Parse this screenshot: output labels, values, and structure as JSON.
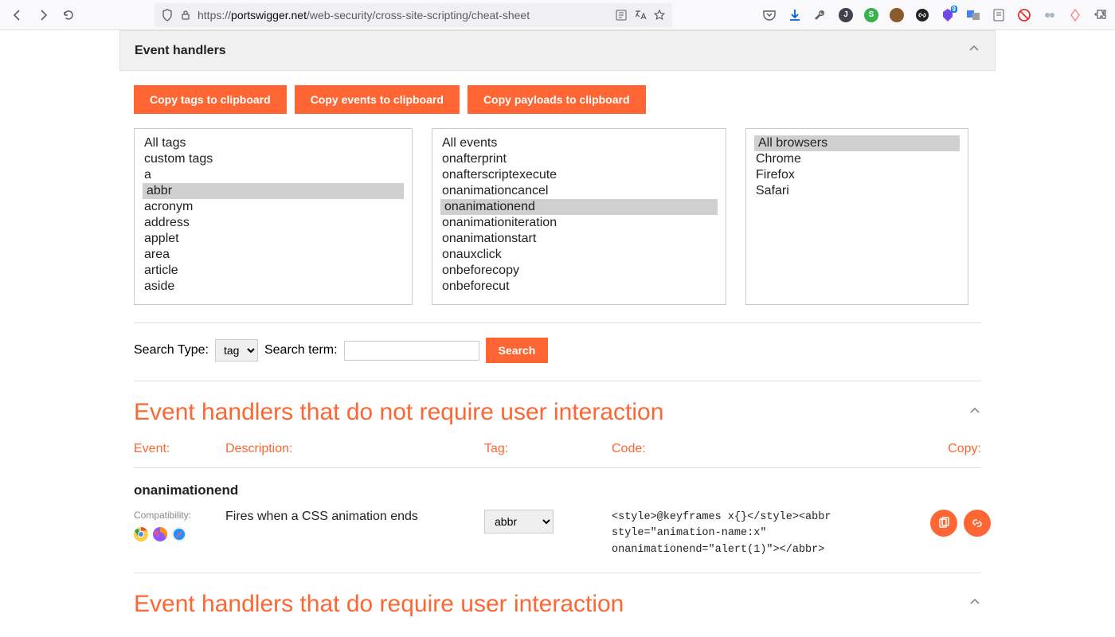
{
  "browser": {
    "url_prefix": "https://",
    "url_domain": "portswigger.net",
    "url_path": "/web-security/cross-site-scripting/cheat-sheet"
  },
  "header": {
    "title": "Event handlers"
  },
  "copy_buttons": {
    "tags": "Copy tags to clipboard",
    "events": "Copy events to clipboard",
    "payloads": "Copy payloads to clipboard"
  },
  "tags_list": {
    "items": [
      "All tags",
      "custom tags",
      "a",
      "abbr",
      "acronym",
      "address",
      "applet",
      "area",
      "article",
      "aside"
    ],
    "selected_index": 3
  },
  "events_list": {
    "items": [
      "All events",
      "onafterprint",
      "onafterscriptexecute",
      "onanimationcancel",
      "onanimationend",
      "onanimationiteration",
      "onanimationstart",
      "onauxclick",
      "onbeforecopy",
      "onbeforecut"
    ],
    "selected_index": 4
  },
  "browsers_list": {
    "items": [
      "All browsers",
      "Chrome",
      "Firefox",
      "Safari"
    ],
    "selected_index": 0
  },
  "search": {
    "type_label": "Search Type:",
    "term_label": "Search term:",
    "type_value": "tag",
    "term_value": "",
    "button": "Search"
  },
  "section1": {
    "title": "Event handlers that do not require user interaction"
  },
  "columns": {
    "event": "Event:",
    "description": "Description:",
    "tag": "Tag:",
    "code": "Code:",
    "copy": "Copy:"
  },
  "detail": {
    "event": "onanimationend",
    "compat_label": "Compatibility:",
    "description": "Fires when a CSS animation ends",
    "tag_value": "abbr",
    "code": "<style>@keyframes x{}</style><abbr style=\"animation-name:x\" onanimationend=\"alert(1)\"></abbr>"
  },
  "section2": {
    "title": "Event handlers that do require user interaction"
  },
  "colors": {
    "accent": "#ff6633",
    "chrome_bg": "#f9f9fb",
    "header_bg": "#f0f0f0",
    "border": "#e0e0e0",
    "list_border": "#cccccc",
    "selected_bg": "#d0d0d0",
    "text": "#222222",
    "muted": "#888888",
    "chrome_green": "#1aa260",
    "chrome_red": "#de5246",
    "chrome_yellow": "#ffce44",
    "chrome_blue": "#4c8bf5",
    "firefox_orange": "#ff9500",
    "firefox_purple": "#9059ff",
    "safari_blue": "#1e90ff"
  }
}
